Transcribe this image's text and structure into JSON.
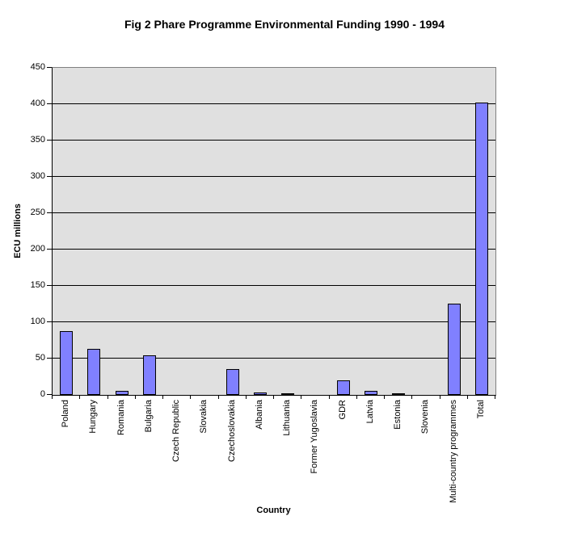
{
  "chart_data": {
    "type": "bar",
    "title": "Fig 2 Phare Programme Environmental Funding 1990 - 1994",
    "xlabel": "Country",
    "ylabel": "ECU millions",
    "categories": [
      "Poland",
      "Hungary",
      "Romania",
      "Bulgaria",
      "Czech Republic",
      "Slovakia",
      "Czechoslovakia",
      "Albania",
      "Lithuania",
      "Former Yugoslavia",
      "GDR",
      "Latvia",
      "Estonia",
      "Slovenia",
      "Multi-country programmes",
      "Total"
    ],
    "values": [
      88,
      63,
      5,
      54,
      0,
      0,
      35,
      3,
      1,
      0,
      20,
      5,
      2,
      0,
      126,
      402
    ],
    "ylim": [
      0,
      450
    ],
    "yticks": [
      0,
      50,
      100,
      150,
      200,
      250,
      300,
      350,
      400,
      450
    ],
    "grid": true,
    "legend_position": "none"
  },
  "colors": {
    "background": "#FFFFFF",
    "plot_background": "#E0E0E0",
    "plot_border": "#808080",
    "gridline": "#000000",
    "bar_fill": "#8080FF",
    "bar_border": "#000000"
  }
}
